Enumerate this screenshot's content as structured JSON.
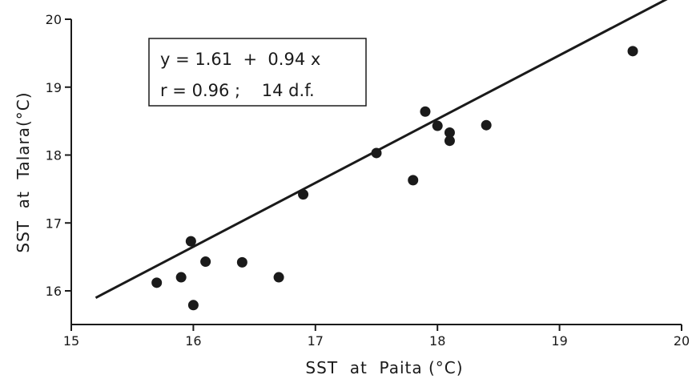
{
  "chart_data": {
    "type": "scatter",
    "title": "",
    "xlabel": "SST  at  Paita (°C)",
    "ylabel": "SST  at  Talara(°C)",
    "xlim": [
      15,
      20
    ],
    "ylim": [
      15.5,
      20
    ],
    "xticks": [
      "15",
      "16",
      "17",
      "18",
      "19",
      "20"
    ],
    "yticks": [
      "16",
      "17",
      "18",
      "19",
      "20"
    ],
    "points": [
      {
        "x": 15.7,
        "y": 16.12
      },
      {
        "x": 15.9,
        "y": 16.2
      },
      {
        "x": 15.98,
        "y": 16.73
      },
      {
        "x": 16.0,
        "y": 15.79
      },
      {
        "x": 16.1,
        "y": 16.43
      },
      {
        "x": 16.4,
        "y": 16.42
      },
      {
        "x": 16.7,
        "y": 16.2
      },
      {
        "x": 16.9,
        "y": 17.42
      },
      {
        "x": 17.5,
        "y": 18.03
      },
      {
        "x": 17.8,
        "y": 17.63
      },
      {
        "x": 17.9,
        "y": 18.64
      },
      {
        "x": 18.0,
        "y": 18.43
      },
      {
        "x": 18.1,
        "y": 18.33
      },
      {
        "x": 18.1,
        "y": 18.21
      },
      {
        "x": 18.4,
        "y": 18.44
      },
      {
        "x": 19.6,
        "y": 19.53
      }
    ],
    "regression": {
      "intercept": 1.61,
      "slope": 0.94,
      "x_range": [
        15.2,
        20
      ]
    },
    "annotation": {
      "line1": "y = 1.61  +  0.94 x",
      "line2": "r = 0.96 ;    14 d.f."
    },
    "grid": false,
    "colors": {
      "ink": "#1a1a1a",
      "background": "#ffffff"
    }
  }
}
